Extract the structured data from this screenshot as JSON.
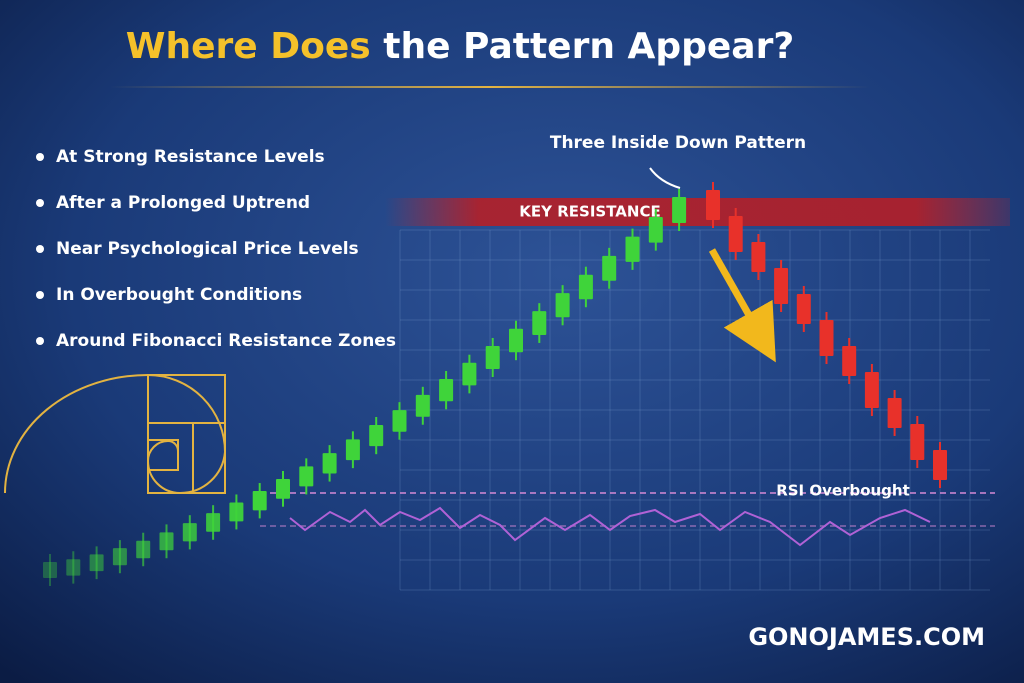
{
  "header": {
    "title_highlight": "Where Does",
    "title_rest": "the Pattern Appear?"
  },
  "bullets": [
    "At Strong Resistance Levels",
    "After a Prolonged Uptrend",
    "Near Psychological Price Levels",
    "In Overbought Conditions",
    "Around Fibonacci Resistance Zones"
  ],
  "labels": {
    "pattern": "Three Inside Down Pattern",
    "resistance": "KEY RESISTANCE",
    "rsi": "RSI Overbought"
  },
  "footer": {
    "brand": "GONOJAMES.COM"
  }
}
